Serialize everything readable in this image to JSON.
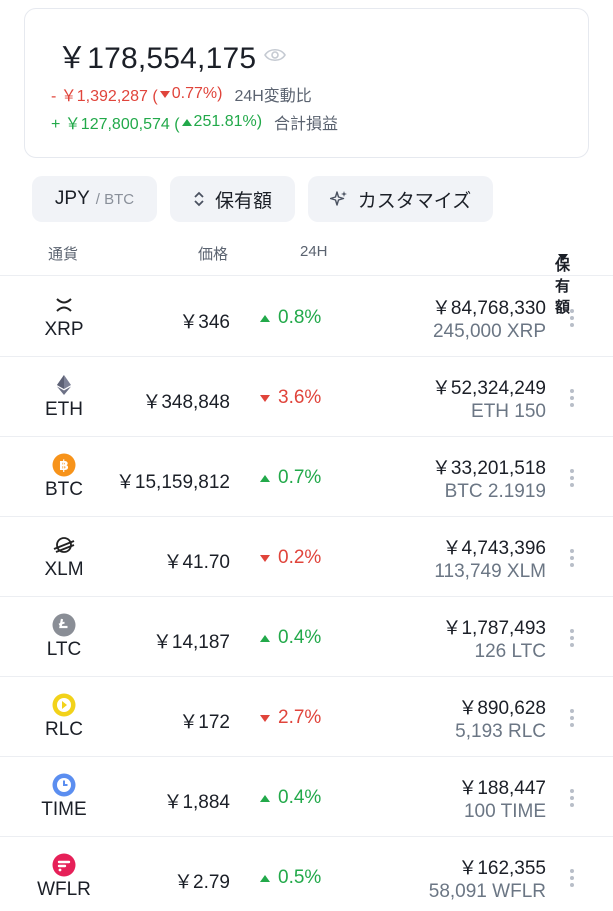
{
  "summary": {
    "total": "￥178,554,175",
    "day_change_amount": "- ￥1,392,287 (",
    "day_change_pct": "0.77%)",
    "day_change_label": "24H変動比",
    "total_pl_amount": "+ ￥127,800,574 (",
    "total_pl_pct": "251.81%)",
    "total_pl_label": "合計損益"
  },
  "toolbar": {
    "currency_label": "JPY",
    "currency_sub": "/ BTC",
    "sort_label": "保有額",
    "customize_label": "カスタマイズ"
  },
  "table": {
    "headers": {
      "currency": "通貨",
      "price": "価格",
      "change": "24H",
      "holdings": "保有額"
    },
    "rows": [
      {
        "symbol": "XRP",
        "icon": "xrp-icon",
        "price": "￥346",
        "change": "0.8%",
        "direction": "up",
        "value": "￥84,768,330",
        "amount": "245,000 XRP"
      },
      {
        "symbol": "ETH",
        "icon": "eth-icon",
        "price": "￥348,848",
        "change": "3.6%",
        "direction": "down",
        "value": "￥52,324,249",
        "amount": "ETH 150"
      },
      {
        "symbol": "BTC",
        "icon": "btc-icon",
        "price": "￥15,159,812",
        "change": "0.7%",
        "direction": "up",
        "value": "￥33,201,518",
        "amount": "BTC 2.1919"
      },
      {
        "symbol": "XLM",
        "icon": "xlm-icon",
        "price": "￥41.70",
        "change": "0.2%",
        "direction": "down",
        "value": "￥4,743,396",
        "amount": "113,749 XLM"
      },
      {
        "symbol": "LTC",
        "icon": "ltc-icon",
        "price": "￥14,187",
        "change": "0.4%",
        "direction": "up",
        "value": "￥1,787,493",
        "amount": "126 LTC"
      },
      {
        "symbol": "RLC",
        "icon": "rlc-icon",
        "price": "￥172",
        "change": "2.7%",
        "direction": "down",
        "value": "￥890,628",
        "amount": "5,193 RLC"
      },
      {
        "symbol": "TIME",
        "icon": "time-icon",
        "price": "￥1,884",
        "change": "0.4%",
        "direction": "up",
        "value": "￥188,447",
        "amount": "100 TIME"
      },
      {
        "symbol": "WFLR",
        "icon": "wflr-icon",
        "price": "￥2.79",
        "change": "0.5%",
        "direction": "up",
        "value": "￥162,355",
        "amount": "58,091 WFLR"
      }
    ]
  },
  "colors": {
    "positive": "#22a94a",
    "negative": "#e0443b",
    "btc": "#f7931a",
    "rlc": "#f2d21a",
    "time": "#5b8ef0",
    "wflr": "#e62058"
  }
}
